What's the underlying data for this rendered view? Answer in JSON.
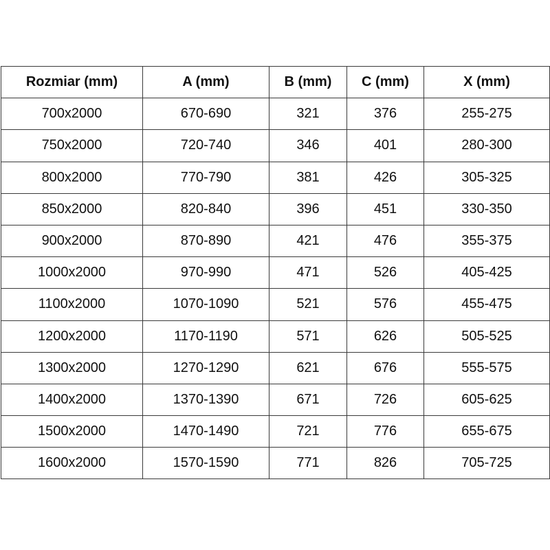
{
  "headers": [
    "Rozmiar (mm)",
    "A (mm)",
    "B (mm)",
    "C (mm)",
    "X (mm)"
  ],
  "rows": [
    [
      "700x2000",
      "670-690",
      "321",
      "376",
      "255-275"
    ],
    [
      "750x2000",
      "720-740",
      "346",
      "401",
      "280-300"
    ],
    [
      "800x2000",
      "770-790",
      "381",
      "426",
      "305-325"
    ],
    [
      "850x2000",
      "820-840",
      "396",
      "451",
      "330-350"
    ],
    [
      "900x2000",
      "870-890",
      "421",
      "476",
      "355-375"
    ],
    [
      "1000x2000",
      "970-990",
      "471",
      "526",
      "405-425"
    ],
    [
      "1100x2000",
      "1070-1090",
      "521",
      "576",
      "455-475"
    ],
    [
      "1200x2000",
      "1170-1190",
      "571",
      "626",
      "505-525"
    ],
    [
      "1300x2000",
      "1270-1290",
      "621",
      "676",
      "555-575"
    ],
    [
      "1400x2000",
      "1370-1390",
      "671",
      "726",
      "605-625"
    ],
    [
      "1500x2000",
      "1470-1490",
      "721",
      "776",
      "655-675"
    ],
    [
      "1600x2000",
      "1570-1590",
      "771",
      "826",
      "705-725"
    ]
  ]
}
